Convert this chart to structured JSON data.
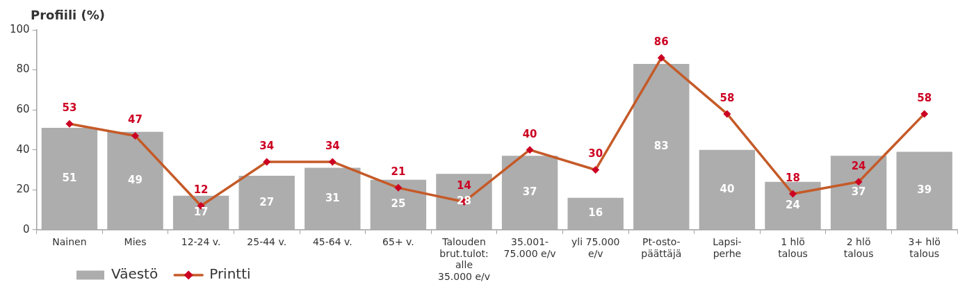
{
  "chart_data": {
    "type": "bar",
    "title": "Profiili (%)",
    "categories": [
      "Nainen",
      "Mies",
      "12-24 v.",
      "25-44 v.",
      "45-64 v.",
      "65+ v.",
      "Talouden brut.tulot: alle 35.000 e/v",
      "35.001-75.000 e/v",
      "yli 75.000 e/v",
      "Pt-osto-päättäjä",
      "Lapsi-perhe",
      "1 hlö talous",
      "2 hlö talous",
      "3+ hlö talous"
    ],
    "series": [
      {
        "name": "Väestö",
        "color": "#adadad",
        "values": [
          51,
          49,
          17,
          27,
          31,
          25,
          28,
          37,
          16,
          83,
          40,
          24,
          37,
          39
        ]
      },
      {
        "name": "Printti",
        "type": "line",
        "color": "#c55a28",
        "values": [
          53,
          47,
          12,
          34,
          34,
          21,
          14,
          40,
          30,
          86,
          58,
          18,
          24,
          58
        ]
      }
    ],
    "ylim": [
      0,
      100
    ],
    "yticks": [
      0,
      20,
      40,
      60,
      80,
      100
    ],
    "grid": false,
    "legend": "bottom left",
    "marker": "diamond",
    "line_style": "solid",
    "data_labels": true
  }
}
